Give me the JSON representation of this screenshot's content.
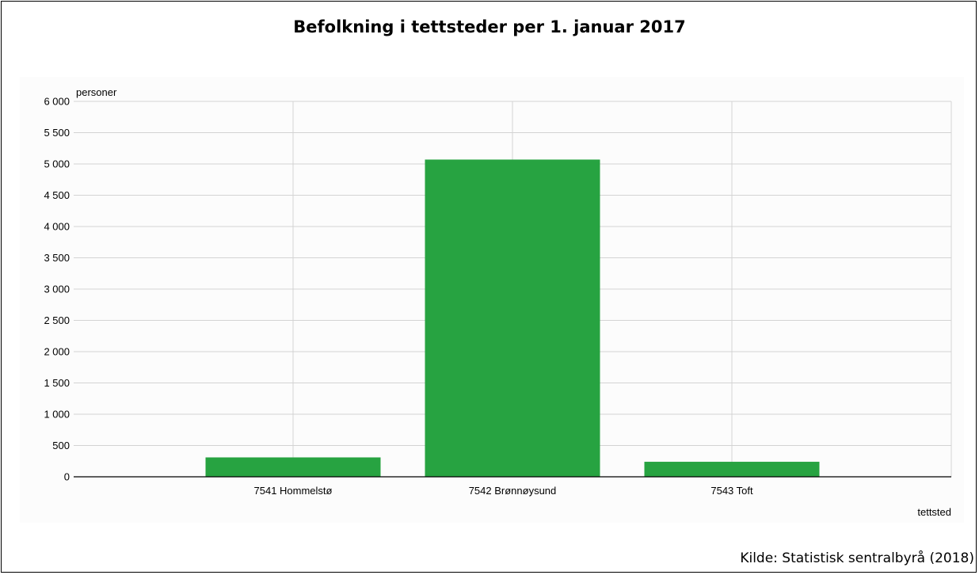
{
  "chart_data": {
    "type": "bar",
    "title": "Befolkning i tettsteder per 1. januar 2017",
    "ylabel": "personer",
    "xlabel": "tettsted",
    "categories": [
      "7541 Hommelstø",
      "7542 Brønnøysund",
      "7543 Toft"
    ],
    "values": [
      310,
      5070,
      240
    ],
    "ylim": [
      0,
      6000
    ],
    "yticks": [
      0,
      500,
      1000,
      1500,
      2000,
      2500,
      3000,
      3500,
      4000,
      4500,
      5000,
      5500,
      6000
    ],
    "ytick_labels": [
      "0",
      "500",
      "1 000",
      "1 500",
      "2 000",
      "2 500",
      "3 000",
      "3 500",
      "4 000",
      "4 500",
      "5 000",
      "5 500",
      "6 000"
    ],
    "grid": true,
    "bar_color": "#27a341",
    "source": "Kilde: Statistisk sentralbyrå (2018)"
  }
}
